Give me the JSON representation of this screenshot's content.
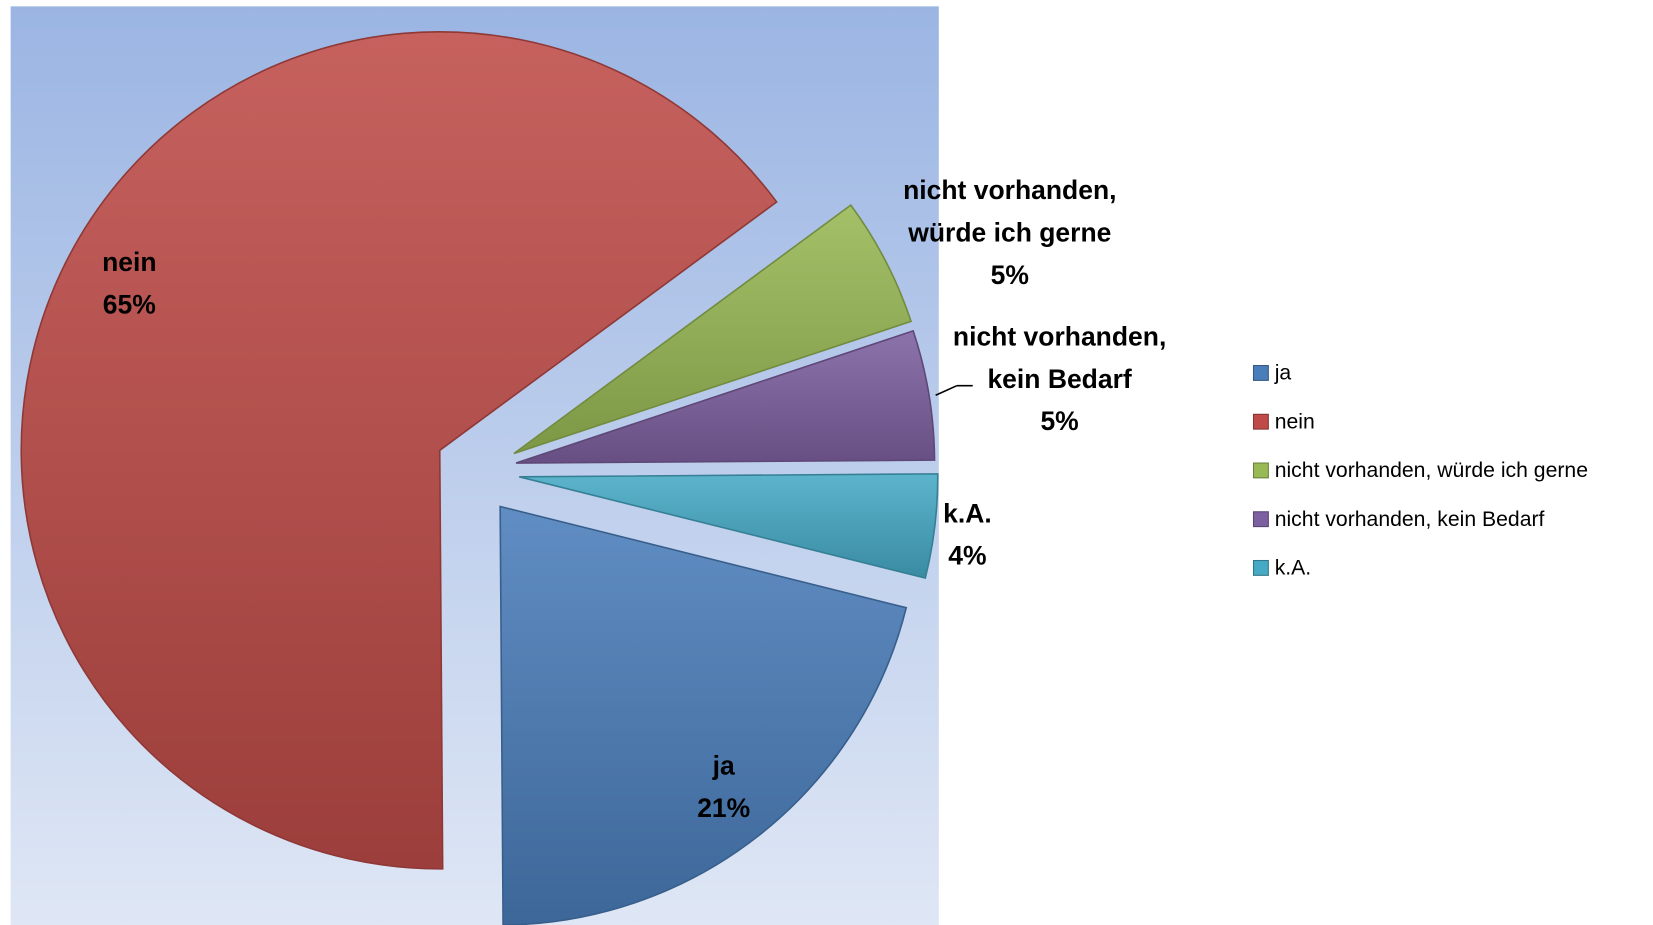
{
  "chart_data": {
    "type": "pie",
    "categories": [
      "ja",
      "nein",
      "nicht vorhanden, würde ich gerne",
      "nicht vorhanden, kein Bedarf",
      "k.A."
    ],
    "values": [
      21,
      65,
      5,
      5,
      4
    ],
    "value_labels": [
      "21%",
      "65%",
      "5%",
      "5%",
      "4%"
    ],
    "colors": [
      "#4a7ebb",
      "#be4b48",
      "#98b954",
      "#7d60a0",
      "#46aac5"
    ],
    "legend": "right"
  }
}
